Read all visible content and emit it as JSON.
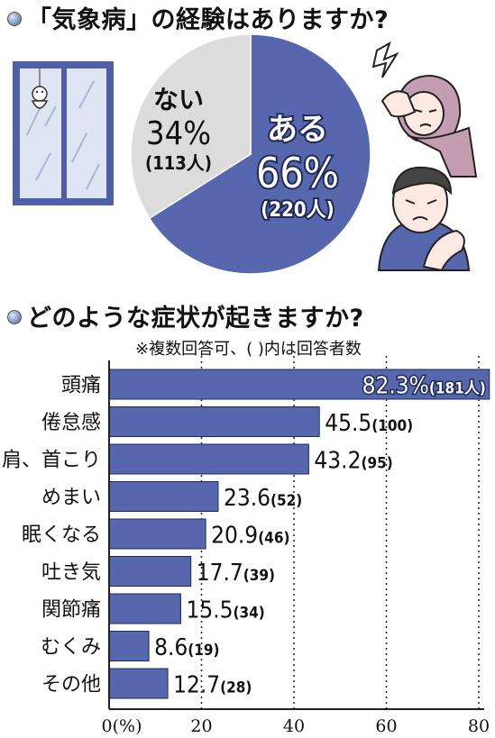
{
  "chart_data": [
    {
      "type": "pie",
      "title": "「気象病」の経験はありますか?",
      "slices": [
        {
          "label": "ある",
          "pct_label": "66%",
          "count_label": "(220人)",
          "value": 66,
          "color": "#5667ad"
        },
        {
          "label": "ない",
          "pct_label": "34%",
          "count_label": "(113人)",
          "value": 34,
          "color": "#dcdcdc"
        }
      ]
    },
    {
      "type": "bar",
      "orientation": "horizontal",
      "title": "どのような症状が起きますか?",
      "subtitle": "※複数回答可、( )内は回答者数",
      "categories": [
        "頭痛",
        "倦怠感",
        "肩、首こり",
        "めまい",
        "眠くなる",
        "吐き気",
        "関節痛",
        "むくみ",
        "その他"
      ],
      "values": [
        82.3,
        45.5,
        43.2,
        23.6,
        20.9,
        17.7,
        15.5,
        8.6,
        12.7
      ],
      "value_labels": [
        "82.3%",
        "45.5",
        "43.2",
        "23.6",
        "20.9",
        "17.7",
        "15.5",
        "8.6",
        "12.7"
      ],
      "count_labels": [
        "(181人)",
        "(100)",
        "(95)",
        "(52)",
        "(46)",
        "(39)",
        "(34)",
        "(19)",
        "(28)"
      ],
      "xlim": [
        0,
        80
      ],
      "x_ticks": [
        "0(%)",
        "20",
        "40",
        "60",
        "80"
      ],
      "grid": "dotted vertical",
      "bar_color": "#5667ad"
    }
  ]
}
